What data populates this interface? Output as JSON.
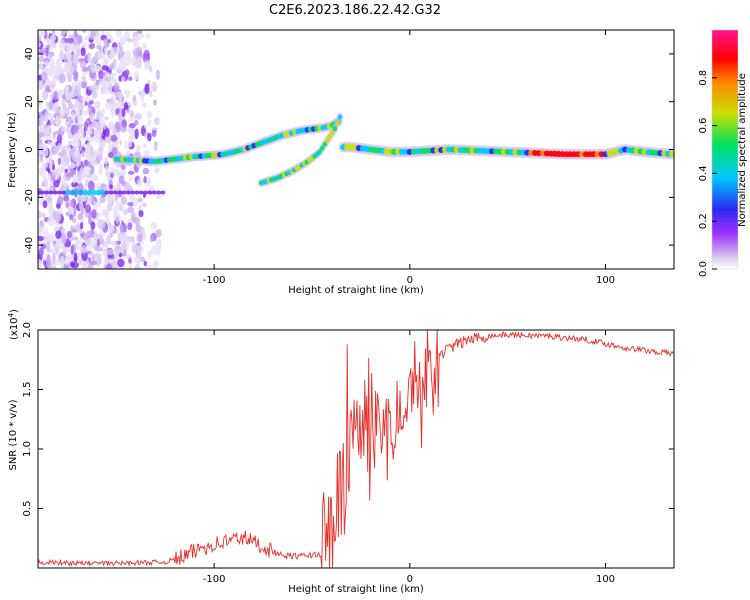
{
  "title": "C2E6.2023.186.22.42.G32",
  "colors": {
    "snr_line": "#e8302a",
    "axes": "#000000",
    "colorbar_stops": [
      "#ffffff",
      "#d8c6f0",
      "#9b30ff",
      "#2a2af0",
      "#00c8ff",
      "#00e060",
      "#c8e000",
      "#ff8800",
      "#ff0000",
      "#ff1493"
    ]
  },
  "chart_data": [
    {
      "type": "heatmap",
      "name": "spectrogram",
      "xlabel": "Height of straight line (km)",
      "ylabel": "Frequency (Hz)",
      "xlim": [
        -190,
        135
      ],
      "ylim": [
        -50,
        50
      ],
      "xticks": [
        -100,
        0,
        100
      ],
      "xtick_labels": [
        "-100",
        "0",
        "100"
      ],
      "yticks": [
        -40,
        -20,
        0,
        20,
        40
      ],
      "ytick_labels": [
        "-40",
        "-20",
        "0",
        "20",
        "40"
      ],
      "signal_trace": {
        "x": [
          -150,
          -130,
          -110,
          -95,
          -85,
          -75,
          -65,
          -55,
          -45,
          -40,
          -36,
          -34,
          -30,
          -20,
          -10,
          0,
          20,
          50,
          80,
          100,
          110,
          120,
          135
        ],
        "y": [
          -4,
          -5,
          -3,
          -2,
          0,
          3,
          6,
          8,
          9,
          10,
          12,
          1,
          1,
          0,
          -1,
          -1,
          0,
          -1,
          -2,
          -2,
          0,
          -1,
          -2
        ]
      },
      "secondary_trace": {
        "x": [
          -76,
          -68,
          -60,
          -52,
          -46,
          -42,
          -38,
          -35
        ],
        "y": [
          -14,
          -12,
          -9,
          -5,
          -1,
          4,
          9,
          15
        ]
      },
      "noise_region_x": [
        -190,
        -128
      ],
      "colorbar": {
        "label": "Normalized spectral amplitude",
        "range": [
          0,
          1
        ],
        "ticks": [
          0.0,
          0.2,
          0.4,
          0.6,
          0.8
        ],
        "tick_labels": [
          "0.0",
          "0.2",
          "0.4",
          "0.6",
          "0.8"
        ]
      }
    },
    {
      "type": "line",
      "name": "snr",
      "xlabel": "Height of straight line (km)",
      "ylabel": "SNR (10 * v/v)",
      "yscale_label": "(x10",
      "yscale_exp": "4",
      "xlim": [
        -190,
        135
      ],
      "ylim": [
        0,
        2.0
      ],
      "xticks": [
        -100,
        0,
        100
      ],
      "xtick_labels": [
        "-100",
        "0",
        "100"
      ],
      "yticks": [
        0.5,
        1.0,
        1.5,
        2.0
      ],
      "ytick_labels": [
        "0.5",
        "1.0",
        "1.5",
        "2.0"
      ],
      "envelope": {
        "x": [
          -190,
          -170,
          -150,
          -125,
          -115,
          -105,
          -95,
          -85,
          -75,
          -65,
          -55,
          -45,
          -40,
          -36,
          -33,
          -30,
          -25,
          -20,
          -15,
          -10,
          -5,
          0,
          10,
          20,
          30,
          40,
          50,
          70,
          90,
          110,
          135
        ],
        "y": [
          0.05,
          0.04,
          0.04,
          0.05,
          0.1,
          0.18,
          0.22,
          0.26,
          0.18,
          0.1,
          0.1,
          0.12,
          0.25,
          0.55,
          1.05,
          1.15,
          1.2,
          1.3,
          1.35,
          1.4,
          1.45,
          1.55,
          1.72,
          1.85,
          1.92,
          1.95,
          1.96,
          1.95,
          1.92,
          1.85,
          1.8
        ]
      },
      "peak": {
        "x": -32,
        "y": 1.88
      }
    }
  ]
}
